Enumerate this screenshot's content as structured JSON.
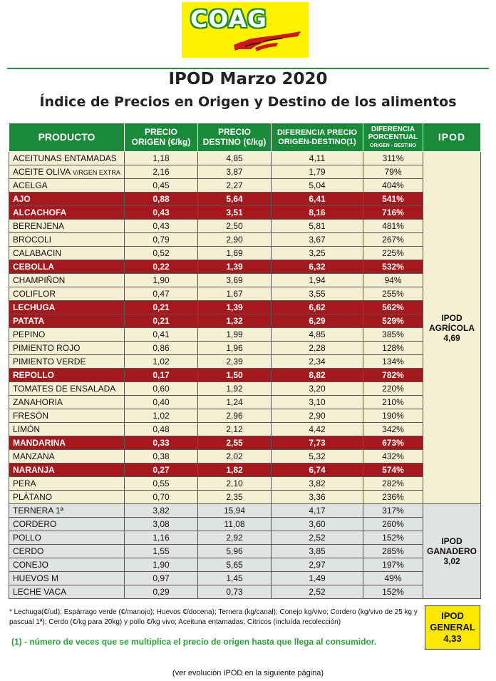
{
  "logo": {
    "text": "COAG"
  },
  "title": "IPOD Marzo 2020",
  "subtitle": "Índice de Precios en Origen y Destino de los alimentos",
  "headers": {
    "producto": "PRODUCTO",
    "origen_1": "PRECIO",
    "origen_2": "ORIGEN (€/kg)",
    "destino_1": "PRECIO",
    "destino_2": "DESTINO (€/kg)",
    "dif_1": "DIFERENCIA PRECIO",
    "dif_2": "ORIGEN-DESTINO(1)",
    "pct_1": "DIFERENCIA",
    "pct_2": "PORCENTUAL",
    "pct_3": "ORIGEN - DESTINO",
    "ipod": "IPOD"
  },
  "rows": [
    {
      "producto": "ACEITUNAS ENTAMADAS",
      "origen": "1,18",
      "destino": "4,85",
      "dif": "4,11",
      "pct": "311%"
    },
    {
      "producto": "ACEITE OLIVA",
      "note": "VIRGEN EXTRA",
      "origen": "2,16",
      "destino": "3,87",
      "dif": "1,79",
      "pct": "79%"
    },
    {
      "producto": "ACELGA",
      "origen": "0,45",
      "destino": "2,27",
      "dif": "5,04",
      "pct": "404%"
    },
    {
      "producto": "AJO",
      "origen": "0,88",
      "destino": "5,64",
      "dif": "6,41",
      "pct": "541%",
      "hl": true
    },
    {
      "producto": "ALCACHOFA",
      "origen": "0,43",
      "destino": "3,51",
      "dif": "8,16",
      "pct": "716%",
      "hl": true
    },
    {
      "producto": "BERENJENA",
      "origen": "0,43",
      "destino": "2,50",
      "dif": "5,81",
      "pct": "481%"
    },
    {
      "producto": "BROCOLI",
      "origen": "0,79",
      "destino": "2,90",
      "dif": "3,67",
      "pct": "267%"
    },
    {
      "producto": "CALABACIN",
      "origen": "0,52",
      "destino": "1,69",
      "dif": "3,25",
      "pct": "225%"
    },
    {
      "producto": "CEBOLLA",
      "origen": "0,22",
      "destino": "1,39",
      "dif": "6,32",
      "pct": "532%",
      "hl": true
    },
    {
      "producto": "CHAMPIÑON",
      "origen": "1,90",
      "destino": "3,69",
      "dif": "1,94",
      "pct": "94%"
    },
    {
      "producto": "COLIFLOR",
      "origen": "0,47",
      "destino": "1,67",
      "dif": "3,55",
      "pct": "255%"
    },
    {
      "producto": "LECHUGA",
      "origen": "0,21",
      "destino": "1,39",
      "dif": "6,62",
      "pct": "562%",
      "hl": true
    },
    {
      "producto": "PATATA",
      "origen": "0,21",
      "destino": "1,32",
      "dif": "6,29",
      "pct": "529%",
      "hl": true
    },
    {
      "producto": "PEPINO",
      "origen": "0,41",
      "destino": "1,99",
      "dif": "4,85",
      "pct": "385%"
    },
    {
      "producto": "PIMIENTO ROJO",
      "origen": "0,86",
      "destino": "1,96",
      "dif": "2,28",
      "pct": "128%"
    },
    {
      "producto": "PIMIENTO VERDE",
      "origen": "1,02",
      "destino": "2,39",
      "dif": "2,34",
      "pct": "134%"
    },
    {
      "producto": "REPOLLO",
      "origen": "0,17",
      "destino": "1,50",
      "dif": "8,82",
      "pct": "782%",
      "hl": true
    },
    {
      "producto": "TOMATES DE ENSALADA",
      "origen": "0,60",
      "destino": "1,92",
      "dif": "3,20",
      "pct": "220%"
    },
    {
      "producto": "ZANAHORIA",
      "origen": "0,40",
      "destino": "1,24",
      "dif": "3,10",
      "pct": "210%"
    },
    {
      "producto": "FRESÓN",
      "origen": "1,02",
      "destino": "2,96",
      "dif": "2,90",
      "pct": "190%"
    },
    {
      "producto": "LIMÓN",
      "origen": "0,48",
      "destino": "2,12",
      "dif": "4,42",
      "pct": "342%"
    },
    {
      "producto": "MANDARINA",
      "origen": "0,33",
      "destino": "2,55",
      "dif": "7,73",
      "pct": "673%",
      "hl": true
    },
    {
      "producto": "MANZANA",
      "origen": "0,38",
      "destino": "2,02",
      "dif": "5,32",
      "pct": "432%"
    },
    {
      "producto": "NARANJA",
      "origen": "0,27",
      "destino": "1,82",
      "dif": "6,74",
      "pct": "574%",
      "hl": true
    },
    {
      "producto": "PERA",
      "origen": "0,55",
      "destino": "2,10",
      "dif": "3,82",
      "pct": "282%"
    },
    {
      "producto": "PLÁTANO",
      "origen": "0,70",
      "destino": "2,35",
      "dif": "3,36",
      "pct": "236%"
    },
    {
      "producto": "TERNERA 1ª",
      "origen": "3,82",
      "destino": "15,94",
      "dif": "4,17",
      "pct": "317%",
      "gan": true
    },
    {
      "producto": "CORDERO",
      "origen": "3,08",
      "destino": "11,08",
      "dif": "3,60",
      "pct": "260%",
      "gan": true
    },
    {
      "producto": "POLLO",
      "origen": "1,16",
      "destino": "2,92",
      "dif": "2,52",
      "pct": "152%",
      "gan": true
    },
    {
      "producto": "CERDO",
      "origen": "1,55",
      "destino": "5,96",
      "dif": "3,85",
      "pct": "285%",
      "gan": true
    },
    {
      "producto": "CONEJO",
      "origen": "1,90",
      "destino": "5,65",
      "dif": "2,97",
      "pct": "197%",
      "gan": true
    },
    {
      "producto": "HUEVOS M",
      "origen": "0,97",
      "destino": "1,45",
      "dif": "1,49",
      "pct": "49%",
      "gan": true
    },
    {
      "producto": "LECHE VACA",
      "origen": "0,29",
      "destino": "0,73",
      "dif": "2,52",
      "pct": "152%",
      "gan": true
    }
  ],
  "ipod_agricola": {
    "line1": "IPOD",
    "line2": "AGRÍCOLA",
    "value": "4,69"
  },
  "ipod_ganadero": {
    "line1": "IPOD",
    "line2": "GANADERO",
    "value": "3,02"
  },
  "ipod_general": {
    "line1": "IPOD",
    "line2": "GENERAL",
    "value": "4,33"
  },
  "footnote": "* Lechuga(€/ud); Espárrago verde (€/manojo); Huevos €/docena); Ternera (kg/canal); Conejo kg/vivo; Cordero (kg/vivo de 25 kg y pascual 1ª); Cerdo (€/kg para 20kg) y pollo €/kg vivo; Aceituna entamadas; Cítricos (incluída recolección)",
  "note1": "(1) - número de veces que se multiplica el precio de origen hasta que llega al consumidor.",
  "footer": "(ver evolución IPOD en la siguiente página)",
  "colors": {
    "header_green": "#1a8a3a",
    "highlight_red": "#a5181d",
    "agricola_bg": "#f5f0d4",
    "ganadero_bg": "#dfe4e0",
    "general_yellow": "#ffe800",
    "logo_yellow": "#fff200"
  }
}
